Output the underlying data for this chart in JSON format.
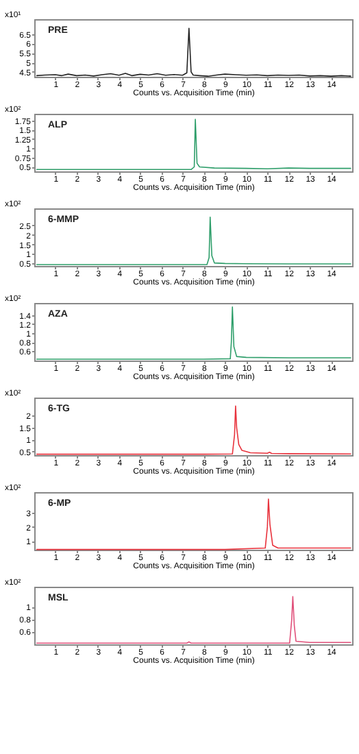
{
  "chart_data": [
    {
      "type": "line",
      "title": "PRE",
      "xlabel": "Counts vs. Acquisition Time (min)",
      "ylabel": "x10¹",
      "color": "#222222",
      "grid": false,
      "xlim": [
        0,
        15
      ],
      "xticks": [
        1,
        2,
        3,
        4,
        5,
        6,
        7,
        8,
        9,
        10,
        11,
        12,
        13,
        14
      ],
      "ylim": [
        4.24,
        7.28
      ],
      "yticks": [
        4.5,
        5,
        5.5,
        6,
        6.5
      ],
      "x": [
        0.1,
        0.5,
        1,
        1.3,
        1.6,
        2,
        2.4,
        2.8,
        3.2,
        3.6,
        4,
        4.3,
        4.6,
        5,
        5.4,
        5.8,
        6.2,
        6.6,
        7.0,
        7.2,
        7.3,
        7.4,
        7.5,
        7.8,
        8.2,
        8.6,
        9,
        9.5,
        10,
        10.5,
        11,
        11.5,
        12,
        12.5,
        13,
        13.5,
        14,
        14.5,
        14.95
      ],
      "values": [
        4.3,
        4.33,
        4.35,
        4.3,
        4.38,
        4.3,
        4.33,
        4.28,
        4.35,
        4.4,
        4.32,
        4.42,
        4.3,
        4.37,
        4.33,
        4.4,
        4.32,
        4.36,
        4.32,
        4.45,
        6.8,
        4.5,
        4.33,
        4.3,
        4.27,
        4.33,
        4.38,
        4.35,
        4.32,
        4.34,
        4.3,
        4.33,
        4.31,
        4.33,
        4.28,
        4.3,
        4.27,
        4.3,
        4.27
      ]
    },
    {
      "type": "line",
      "title": "ALP",
      "xlabel": "Counts vs. Acquisition Time (min)",
      "ylabel": "x10²",
      "color": "#2e9e6a",
      "grid": false,
      "xlim": [
        0,
        15
      ],
      "xticks": [
        1,
        2,
        3,
        4,
        5,
        6,
        7,
        8,
        9,
        10,
        11,
        12,
        13,
        14
      ],
      "ylim": [
        0.38,
        1.93
      ],
      "yticks": [
        0.5,
        0.75,
        1,
        1.25,
        1.5,
        1.75
      ],
      "x": [
        0.1,
        2,
        4,
        6,
        7.4,
        7.55,
        7.6,
        7.68,
        7.8,
        8.5,
        10,
        11,
        12,
        13,
        14.95
      ],
      "values": [
        0.43,
        0.43,
        0.43,
        0.43,
        0.43,
        0.5,
        1.78,
        0.6,
        0.5,
        0.47,
        0.46,
        0.45,
        0.47,
        0.46,
        0.46
      ]
    },
    {
      "type": "line",
      "title": "6-MMP",
      "xlabel": "Counts vs. Acquisition Time (min)",
      "ylabel": "x10²",
      "color": "#2e9e6a",
      "grid": false,
      "xlim": [
        0,
        15
      ],
      "xticks": [
        1,
        2,
        3,
        4,
        5,
        6,
        7,
        8,
        9,
        10,
        11,
        12,
        13,
        14
      ],
      "ylim": [
        0.36,
        3.4
      ],
      "yticks": [
        0.5,
        1,
        1.5,
        2,
        2.5
      ],
      "x": [
        0.1,
        3,
        6,
        8.15,
        8.25,
        8.3,
        8.38,
        8.5,
        9,
        10,
        12,
        14.95
      ],
      "values": [
        0.43,
        0.43,
        0.43,
        0.43,
        0.8,
        2.94,
        0.9,
        0.52,
        0.49,
        0.48,
        0.47,
        0.47
      ]
    },
    {
      "type": "line",
      "title": "AZA",
      "xlabel": "Counts vs. Acquisition Time (min)",
      "ylabel": "x10²",
      "color": "#2e9e6a",
      "grid": false,
      "xlim": [
        0,
        15
      ],
      "xticks": [
        1,
        2,
        3,
        4,
        5,
        6,
        7,
        8,
        9,
        10,
        11,
        12,
        13,
        14
      ],
      "ylim": [
        0.39,
        1.67
      ],
      "yticks": [
        0.6,
        0.8,
        1,
        1.2,
        1.4
      ],
      "x": [
        0.1,
        4,
        8,
        9.25,
        9.3,
        9.35,
        9.42,
        9.55,
        10,
        12,
        14.95
      ],
      "values": [
        0.42,
        0.42,
        0.42,
        0.43,
        0.8,
        1.58,
        0.7,
        0.48,
        0.46,
        0.45,
        0.45
      ]
    },
    {
      "type": "line",
      "title": "6-TG",
      "xlabel": "Counts vs. Acquisition Time (min)",
      "ylabel": "x10²",
      "color": "#e8323c",
      "grid": false,
      "xlim": [
        0,
        15
      ],
      "xticks": [
        1,
        2,
        3,
        4,
        5,
        6,
        7,
        8,
        9,
        10,
        11,
        12,
        13,
        14
      ],
      "ylim": [
        0.35,
        2.76
      ],
      "yticks": [
        0.5,
        1,
        1.5,
        2
      ],
      "x": [
        0.1,
        4,
        8,
        9.35,
        9.45,
        9.5,
        9.55,
        9.65,
        9.8,
        10.2,
        11,
        11.1,
        11.2,
        12,
        14.95
      ],
      "values": [
        0.39,
        0.39,
        0.39,
        0.4,
        1.2,
        2.41,
        1.5,
        0.8,
        0.55,
        0.45,
        0.43,
        0.47,
        0.42,
        0.41,
        0.4
      ]
    },
    {
      "type": "line",
      "title": "6-MP",
      "xlabel": "Counts vs. Acquisition Time (min)",
      "ylabel": "x10²",
      "color": "#e8323c",
      "grid": false,
      "xlim": [
        0,
        15
      ],
      "xticks": [
        1,
        2,
        3,
        4,
        5,
        6,
        7,
        8,
        9,
        10,
        11,
        12,
        13,
        14
      ],
      "ylim": [
        0.38,
        4.49
      ],
      "yticks": [
        1,
        2,
        3
      ],
      "x": [
        0.1,
        5,
        9,
        10.9,
        11.0,
        11.05,
        11.12,
        11.25,
        11.5,
        12,
        13,
        14.95
      ],
      "values": [
        0.4,
        0.4,
        0.4,
        0.5,
        2.0,
        4.0,
        2.2,
        0.7,
        0.5,
        0.5,
        0.5,
        0.5
      ]
    },
    {
      "type": "line",
      "title": "MSL",
      "xlabel": "Counts vs. Acquisition Time (min)",
      "ylabel": "x10²",
      "color": "#e0507a",
      "grid": false,
      "xlim": [
        0,
        15
      ],
      "xticks": [
        1,
        2,
        3,
        4,
        5,
        6,
        7,
        8,
        9,
        10,
        11,
        12,
        13,
        14
      ],
      "ylim": [
        0.39,
        1.33
      ],
      "yticks": [
        0.6,
        0.8,
        1
      ],
      "x": [
        0.1,
        4,
        7.2,
        7.3,
        7.4,
        12.05,
        12.15,
        12.2,
        12.27,
        12.35,
        13,
        14.95
      ],
      "values": [
        0.41,
        0.41,
        0.41,
        0.43,
        0.41,
        0.41,
        0.8,
        1.17,
        0.7,
        0.44,
        0.42,
        0.42
      ]
    }
  ]
}
